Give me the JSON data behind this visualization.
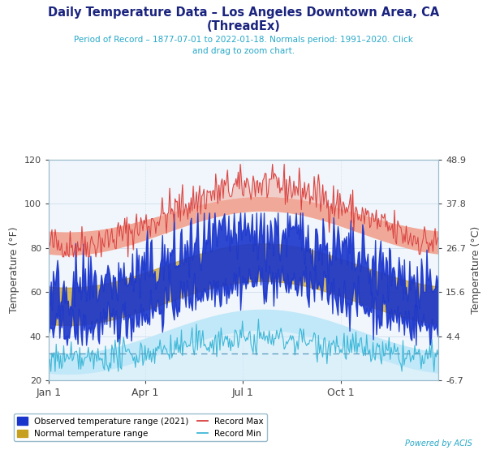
{
  "title_line1": "Daily Temperature Data – Los Angeles Downtown Area, CA",
  "title_line2": "(ThreadEx)",
  "subtitle": "Period of Record – 1877-07-01 to 2022-01-18. Normals period: 1991–2020. Click\nand drag to zoom chart.",
  "xlabel_ticks": [
    "Jan 1",
    "Apr 1",
    "Jul 1",
    "Oct 1"
  ],
  "xlabel_tick_positions": [
    0,
    90,
    181,
    273
  ],
  "ylabel_left": "Temperature (°F)",
  "ylabel_right": "Temperature (°C)",
  "ylim": [
    20,
    120
  ],
  "yticks_left": [
    20,
    40,
    60,
    80,
    100,
    120
  ],
  "yticks_right_labels": [
    "-6.7",
    "4.4",
    "15.6",
    "26.7",
    "37.8",
    "48.9"
  ],
  "bg_color": "#ffffff",
  "plot_bg_color": "#f0f6fc",
  "title_color": "#1a237e",
  "subtitle_color": "#26a8c8",
  "record_max_color": "#d94040",
  "record_min_color": "#40b8d8",
  "observed_fill_color": "#1a35cc",
  "normal_band_fill": "#c8a020",
  "record_band_fill": "#f0a898",
  "rec_min_band_fill": "#c0e8f8",
  "dashed_line_value": 32,
  "legend_observed_color": "#1a35cc",
  "legend_normal_color": "#c8a020",
  "legend_recmax_color": "#d94040",
  "legend_recmin_color": "#40b8d8",
  "powered_text": "Powered by ACIS",
  "powered_color": "#26a8c8",
  "grid_color": "#c8d8e8"
}
